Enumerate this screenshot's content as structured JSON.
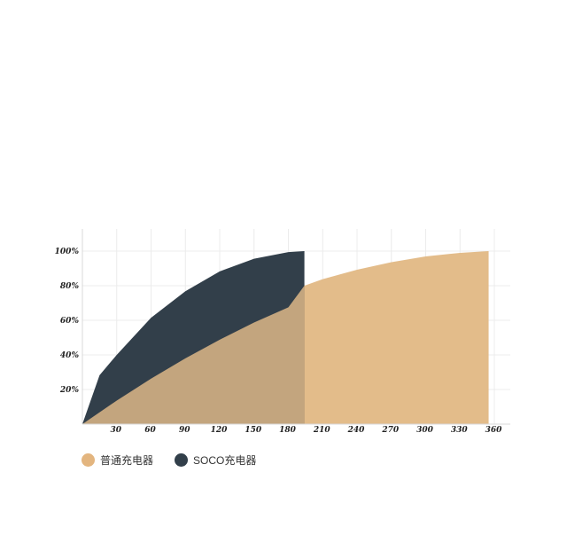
{
  "chart_data": {
    "type": "area",
    "title": "",
    "xlabel": "",
    "ylabel": "",
    "x_ticks": [
      30,
      60,
      90,
      120,
      150,
      180,
      210,
      240,
      270,
      300,
      330,
      360
    ],
    "y_ticks": [
      "20%",
      "40%",
      "60%",
      "80%",
      "100%"
    ],
    "xlim": [
      0,
      370
    ],
    "ylim": [
      0,
      100
    ],
    "grid": true,
    "legend_position": "bottom-left",
    "series": [
      {
        "name": "普通充电器",
        "color": "#e3bc8a",
        "x": [
          0,
          30,
          60,
          90,
          120,
          150,
          180,
          194,
          210,
          240,
          270,
          300,
          330,
          355
        ],
        "values": [
          0,
          13.6,
          26.3,
          38.0,
          48.8,
          58.7,
          67.5,
          80,
          83.8,
          89.2,
          93.6,
          96.9,
          99.0,
          100
        ]
      },
      {
        "name": "SOCO充电器",
        "color": "#323f4a",
        "x": [
          0,
          15,
          30,
          60,
          90,
          120,
          150,
          180,
          194
        ],
        "values": [
          0,
          28.3,
          40.0,
          61.5,
          76.8,
          88.3,
          95.6,
          99.4,
          100
        ]
      }
    ]
  }
}
